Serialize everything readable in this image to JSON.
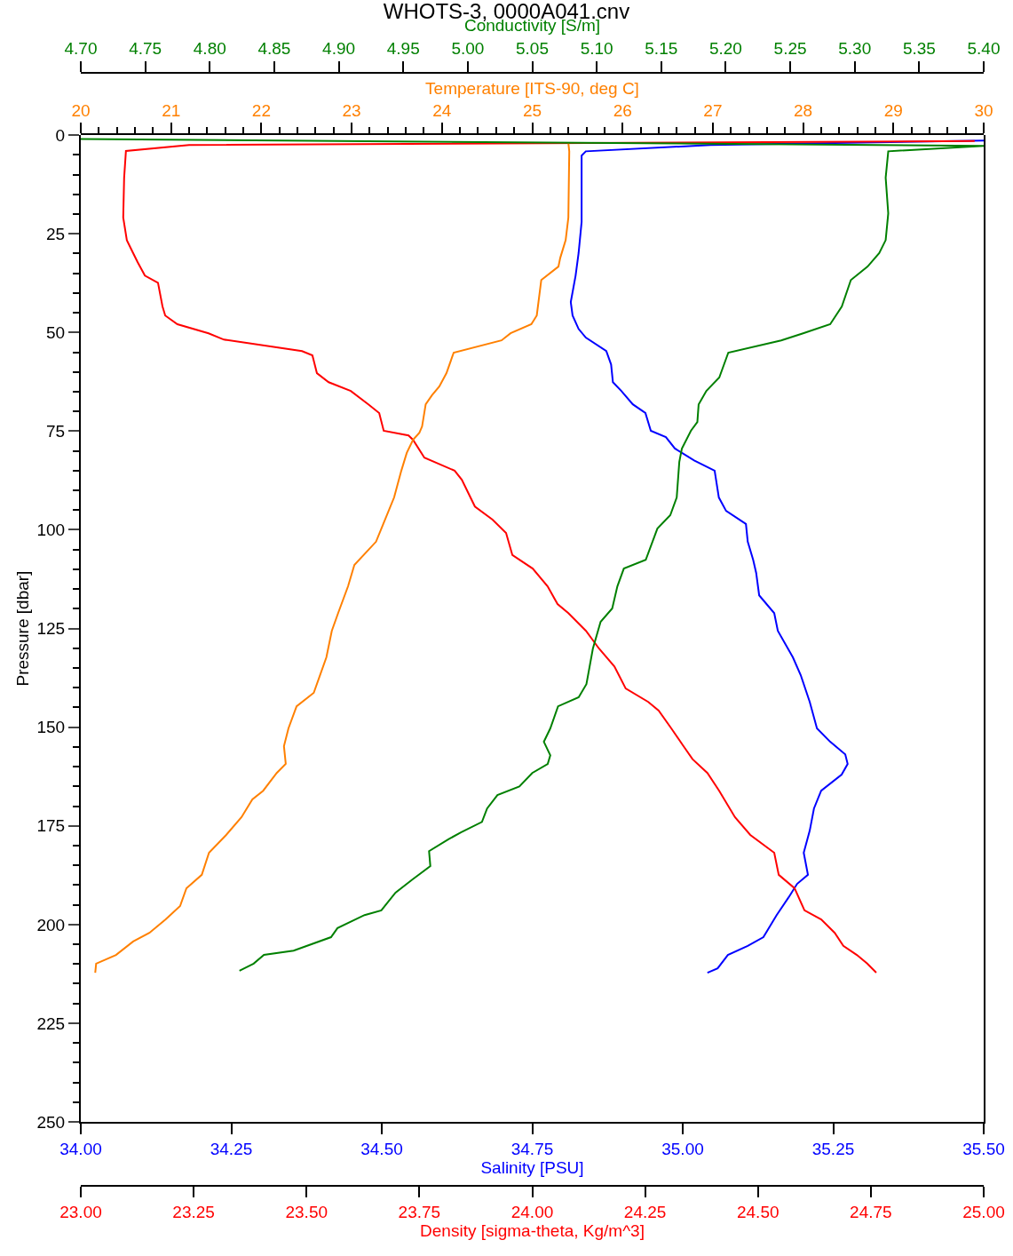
{
  "chart_data": [
    {
      "type": "line",
      "title": "WHOTS-3, 0000A041.cnv",
      "xlabel": "Salinity [PSU]",
      "x2label": "Density [sigma-theta, Kg/m^3]",
      "ylabel": "Pressure [dbar]",
      "xlim": [
        34,
        35.5
      ],
      "xticks": [
        {
          "value": 34,
          "label": "34.00"
        },
        {
          "value": 34.25,
          "label": "34.25"
        },
        {
          "value": 34.5,
          "label": "34.50"
        },
        {
          "value": 34.75,
          "label": "34.75"
        },
        {
          "value": 35,
          "label": "35.00"
        },
        {
          "value": 35.25,
          "label": "35.25"
        },
        {
          "value": 35.5,
          "label": "35.50"
        }
      ],
      "x2lim": [
        23,
        25
      ],
      "x2ticks": [
        {
          "value": 23,
          "label": "23.00"
        },
        {
          "value": 23.25,
          "label": "23.25"
        },
        {
          "value": 23.5,
          "label": "23.50"
        },
        {
          "value": 23.75,
          "label": "23.75"
        },
        {
          "value": 24,
          "label": "24.00"
        },
        {
          "value": 24.25,
          "label": "24.25"
        },
        {
          "value": 24.5,
          "label": "24.50"
        },
        {
          "value": 24.75,
          "label": "24.75"
        },
        {
          "value": 25,
          "label": "25.00"
        }
      ],
      "ylim": [
        250,
        0
      ],
      "yticks": [
        0,
        25,
        50,
        75,
        100,
        125,
        150,
        175,
        200,
        225,
        250,
        {
          "value": 5,
          "label": null
        },
        {
          "value": 10,
          "label": null
        },
        {
          "value": 15,
          "label": null
        },
        {
          "value": 20,
          "label": null
        },
        {
          "value": 30,
          "label": null
        },
        {
          "value": 35,
          "label": null
        },
        {
          "value": 40,
          "label": null
        },
        {
          "value": 45,
          "label": null
        },
        {
          "value": 55,
          "label": null
        },
        {
          "value": 60,
          "label": null
        },
        {
          "value": 65,
          "label": null
        },
        {
          "value": 70,
          "label": null
        },
        {
          "value": 80,
          "label": null
        },
        {
          "value": 85,
          "label": null
        },
        {
          "value": 90,
          "label": null
        },
        {
          "value": 95,
          "label": null
        },
        {
          "value": 105,
          "label": null
        },
        {
          "value": 110,
          "label": null
        },
        {
          "value": 115,
          "label": null
        },
        {
          "value": 120,
          "label": null
        },
        {
          "value": 130,
          "label": null
        },
        {
          "value": 135,
          "label": null
        },
        {
          "value": 140,
          "label": null
        },
        {
          "value": 145,
          "label": null
        },
        {
          "value": 155,
          "label": null
        },
        {
          "value": 160,
          "label": null
        },
        {
          "value": 165,
          "label": null
        },
        {
          "value": 170,
          "label": null
        },
        {
          "value": 180,
          "label": null
        },
        {
          "value": 185,
          "label": null
        },
        {
          "value": 190,
          "label": null
        },
        {
          "value": 195,
          "label": null
        },
        {
          "value": 205,
          "label": null
        },
        {
          "value": 210,
          "label": null
        },
        {
          "value": 215,
          "label": null
        },
        {
          "value": 220,
          "label": null
        },
        {
          "value": 230,
          "label": null
        },
        {
          "value": 235,
          "label": null
        },
        {
          "value": 240,
          "label": null
        },
        {
          "value": 245,
          "label": null
        }
      ],
      "grid": false,
      "marker": "none",
      "line_style": "solid",
      "series": [
        {
          "color": "#0000ff",
          "x": [
            35.5,
            35.046,
            34.839,
            34.832,
            34.832,
            34.827,
            34.822,
            34.814,
            34.817,
            34.827,
            34.839,
            34.873,
            34.881,
            34.884,
            34.898,
            34.917,
            34.938,
            34.947,
            34.972,
            34.987,
            35.019,
            35.053,
            35.06,
            35.072,
            35.105,
            35.108,
            35.117,
            35.122,
            35.127,
            35.152,
            35.158,
            35.183,
            35.196,
            35.211,
            35.223,
            35.245,
            35.27,
            35.274,
            35.264,
            35.23,
            35.218,
            35.211,
            35.201,
            35.208,
            35.19,
            35.176,
            35.156,
            35.134,
            35.108,
            35.075,
            35.058,
            35.041
          ],
          "values": [
            1.4,
            2.5,
            4.1,
            5.2,
            22.0,
            29.9,
            35.6,
            42.3,
            45.7,
            49.1,
            51.3,
            54.7,
            58.1,
            62.6,
            64.8,
            68.2,
            70.4,
            74.9,
            76.5,
            79.4,
            82.4,
            85.0,
            91.8,
            95.2,
            98.5,
            103.0,
            107.6,
            110.9,
            116.6,
            121.1,
            125.6,
            132.3,
            136.8,
            143.6,
            150.3,
            153.7,
            156.9,
            159.3,
            162.0,
            166.1,
            170.6,
            176.2,
            181.8,
            187.4,
            189.7,
            193.1,
            197.6,
            203.2,
            205.4,
            207.7,
            211.1,
            212.2
          ]
        },
        {
          "color": "#ff0000",
          "axis": "x2",
          "x": [
            24.98,
            23.24,
            23.1,
            23.096,
            23.094,
            23.102,
            23.116,
            23.126,
            23.142,
            23.171,
            23.181,
            23.187,
            23.214,
            23.283,
            23.317,
            23.49,
            23.513,
            23.523,
            23.549,
            23.598,
            23.637,
            23.661,
            23.671,
            23.726,
            23.736,
            23.761,
            23.828,
            23.844,
            23.873,
            23.912,
            23.942,
            23.956,
            24.001,
            24.034,
            24.056,
            24.08,
            24.119,
            24.148,
            24.182,
            24.207,
            24.257,
            24.28,
            24.308,
            24.335,
            24.355,
            24.388,
            24.414,
            24.449,
            24.483,
            24.536,
            24.546,
            24.581,
            24.603,
            24.64,
            24.67,
            24.689,
            24.719,
            24.742,
            24.762
          ],
          "values": [
            1.5,
            2.5,
            4.0,
            10.8,
            20.9,
            26.6,
            29.9,
            32.2,
            35.6,
            37.4,
            43.4,
            45.7,
            47.9,
            50.2,
            51.8,
            54.7,
            55.8,
            60.3,
            62.6,
            64.8,
            68.2,
            70.4,
            74.9,
            76.1,
            77.2,
            81.7,
            85.0,
            87.3,
            94.1,
            97.4,
            100.8,
            106.4,
            109.8,
            114.3,
            118.8,
            121.1,
            125.6,
            130.1,
            134.6,
            140.2,
            143.6,
            145.8,
            150.3,
            154.8,
            158.1,
            161.6,
            166.1,
            172.8,
            177.3,
            181.8,
            187.4,
            190.8,
            196.4,
            198.7,
            202.1,
            205.4,
            207.7,
            209.9,
            212.2
          ]
        }
      ]
    },
    {
      "type": "line",
      "xlabel": "Temperature [ITS-90, deg C]",
      "x2label": "Conductivity [S/m]",
      "tick_labels": "x",
      "xlim": [
        20,
        30
      ],
      "xticks": [
        20,
        21,
        22,
        23,
        24,
        25,
        26,
        27,
        28,
        29,
        30,
        {
          "value": 20.2,
          "label": null
        },
        {
          "value": 20.4,
          "label": null
        },
        {
          "value": 20.6,
          "label": null
        },
        {
          "value": 20.8,
          "label": null
        },
        {
          "value": 21.2,
          "label": null
        },
        {
          "value": 21.4,
          "label": null
        },
        {
          "value": 21.6,
          "label": null
        },
        {
          "value": 21.8,
          "label": null
        },
        {
          "value": 22.2,
          "label": null
        },
        {
          "value": 22.4,
          "label": null
        },
        {
          "value": 22.6,
          "label": null
        },
        {
          "value": 22.8,
          "label": null
        },
        {
          "value": 23.2,
          "label": null
        },
        {
          "value": 23.4,
          "label": null
        },
        {
          "value": 23.6,
          "label": null
        },
        {
          "value": 23.8,
          "label": null
        },
        {
          "value": 24.2,
          "label": null
        },
        {
          "value": 24.4,
          "label": null
        },
        {
          "value": 24.6,
          "label": null
        },
        {
          "value": 24.8,
          "label": null
        },
        {
          "value": 25.2,
          "label": null
        },
        {
          "value": 25.4,
          "label": null
        },
        {
          "value": 25.6,
          "label": null
        },
        {
          "value": 25.8,
          "label": null
        },
        {
          "value": 26.2,
          "label": null
        },
        {
          "value": 26.4,
          "label": null
        },
        {
          "value": 26.6,
          "label": null
        },
        {
          "value": 26.8,
          "label": null
        },
        {
          "value": 27.2,
          "label": null
        },
        {
          "value": 27.4,
          "label": null
        },
        {
          "value": 27.6,
          "label": null
        },
        {
          "value": 27.8,
          "label": null
        },
        {
          "value": 28.2,
          "label": null
        },
        {
          "value": 28.4,
          "label": null
        },
        {
          "value": 28.6,
          "label": null
        },
        {
          "value": 28.8,
          "label": null
        },
        {
          "value": 29.2,
          "label": null
        },
        {
          "value": 29.4,
          "label": null
        },
        {
          "value": 29.6,
          "label": null
        },
        {
          "value": 29.8,
          "label": null
        }
      ],
      "x2lim": [
        4.7,
        5.4
      ],
      "x2ticks": [
        {
          "value": 4.7,
          "label": "4.70"
        },
        {
          "value": 4.75,
          "label": "4.75"
        },
        {
          "value": 4.8,
          "label": "4.80"
        },
        {
          "value": 4.85,
          "label": "4.85"
        },
        {
          "value": 4.9,
          "label": "4.90"
        },
        {
          "value": 4.95,
          "label": "4.95"
        },
        {
          "value": 5.0,
          "label": "5.00"
        },
        {
          "value": 5.05,
          "label": "5.05"
        },
        {
          "value": 5.1,
          "label": "5.10"
        },
        {
          "value": 5.15,
          "label": "5.15"
        },
        {
          "value": 5.2,
          "label": "5.20"
        },
        {
          "value": 5.25,
          "label": "5.25"
        },
        {
          "value": 5.3,
          "label": "5.30"
        },
        {
          "value": 5.35,
          "label": "5.35"
        },
        {
          "value": 5.4,
          "label": "5.40"
        }
      ],
      "ylim": [
        250,
        0
      ],
      "grid": false,
      "marker": "none",
      "line_style": "solid",
      "series": [
        {
          "color": "#ff8000",
          "x": [
            25.4,
            25.41,
            25.4,
            25.37,
            25.31,
            25.29,
            25.1,
            25.05,
            24.99,
            24.76,
            24.66,
            24.13,
            24.05,
            23.97,
            23.89,
            23.82,
            23.78,
            23.75,
            23.68,
            23.61,
            23.55,
            23.47,
            23.35,
            23.27,
            23.03,
            22.96,
            22.85,
            22.78,
            22.72,
            22.58,
            22.39,
            22.3,
            22.25,
            22.27,
            22.17,
            22.02,
            21.9,
            21.78,
            21.61,
            21.42,
            21.34,
            21.17,
            21.1,
            20.94,
            20.76,
            20.58,
            20.39,
            20.17,
            20.16
          ],
          "values": [
            2.0,
            4.1,
            20.9,
            26.6,
            31.1,
            33.3,
            36.7,
            45.7,
            47.9,
            50.2,
            52.0,
            55.1,
            60.3,
            63.7,
            65.9,
            68.2,
            73.8,
            75.4,
            77.2,
            80.5,
            85.0,
            91.8,
            98.5,
            103.0,
            108.9,
            114.3,
            121.1,
            125.6,
            132.3,
            141.3,
            144.7,
            150.3,
            154.8,
            159.3,
            161.6,
            166.1,
            168.3,
            172.8,
            177.3,
            181.8,
            187.4,
            190.8,
            195.3,
            198.7,
            202.1,
            204.3,
            207.7,
            209.9,
            212.2
          ]
        },
        {
          "color": "#008000",
          "axis": "x2",
          "x": [
            4.7,
            5.4,
            5.326,
            5.324,
            5.326,
            5.324,
            5.319,
            5.31,
            5.297,
            5.29,
            5.281,
            5.26,
            5.243,
            5.202,
            5.195,
            5.185,
            5.179,
            5.178,
            5.173,
            5.166,
            5.164,
            5.162,
            5.157,
            5.147,
            5.138,
            5.121,
            5.116,
            5.112,
            5.103,
            5.097,
            5.092,
            5.086,
            5.07,
            5.064,
            5.059,
            5.064,
            5.062,
            5.05,
            5.04,
            5.023,
            5.015,
            5.011,
            4.995,
            4.985,
            4.97,
            4.971,
            4.957,
            4.944,
            4.933,
            4.92,
            4.899,
            4.894,
            4.865,
            4.842,
            4.834,
            4.823
          ],
          "values": [
            1.0,
            2.7,
            4.1,
            10.8,
            19.8,
            26.6,
            29.9,
            33.3,
            36.7,
            43.4,
            47.9,
            50.2,
            52.0,
            55.1,
            61.4,
            64.8,
            68.2,
            72.7,
            74.9,
            79.4,
            82.8,
            91.8,
            96.3,
            99.7,
            107.6,
            109.8,
            114.3,
            119.9,
            123.3,
            130.1,
            139.1,
            142.4,
            144.7,
            150.3,
            153.7,
            157.1,
            159.3,
            161.6,
            165.0,
            167.2,
            170.6,
            174.0,
            176.6,
            178.4,
            181.4,
            185.2,
            188.6,
            191.9,
            196.4,
            197.6,
            200.9,
            203.2,
            206.6,
            207.7,
            209.9,
            211.7
          ]
        }
      ]
    }
  ]
}
